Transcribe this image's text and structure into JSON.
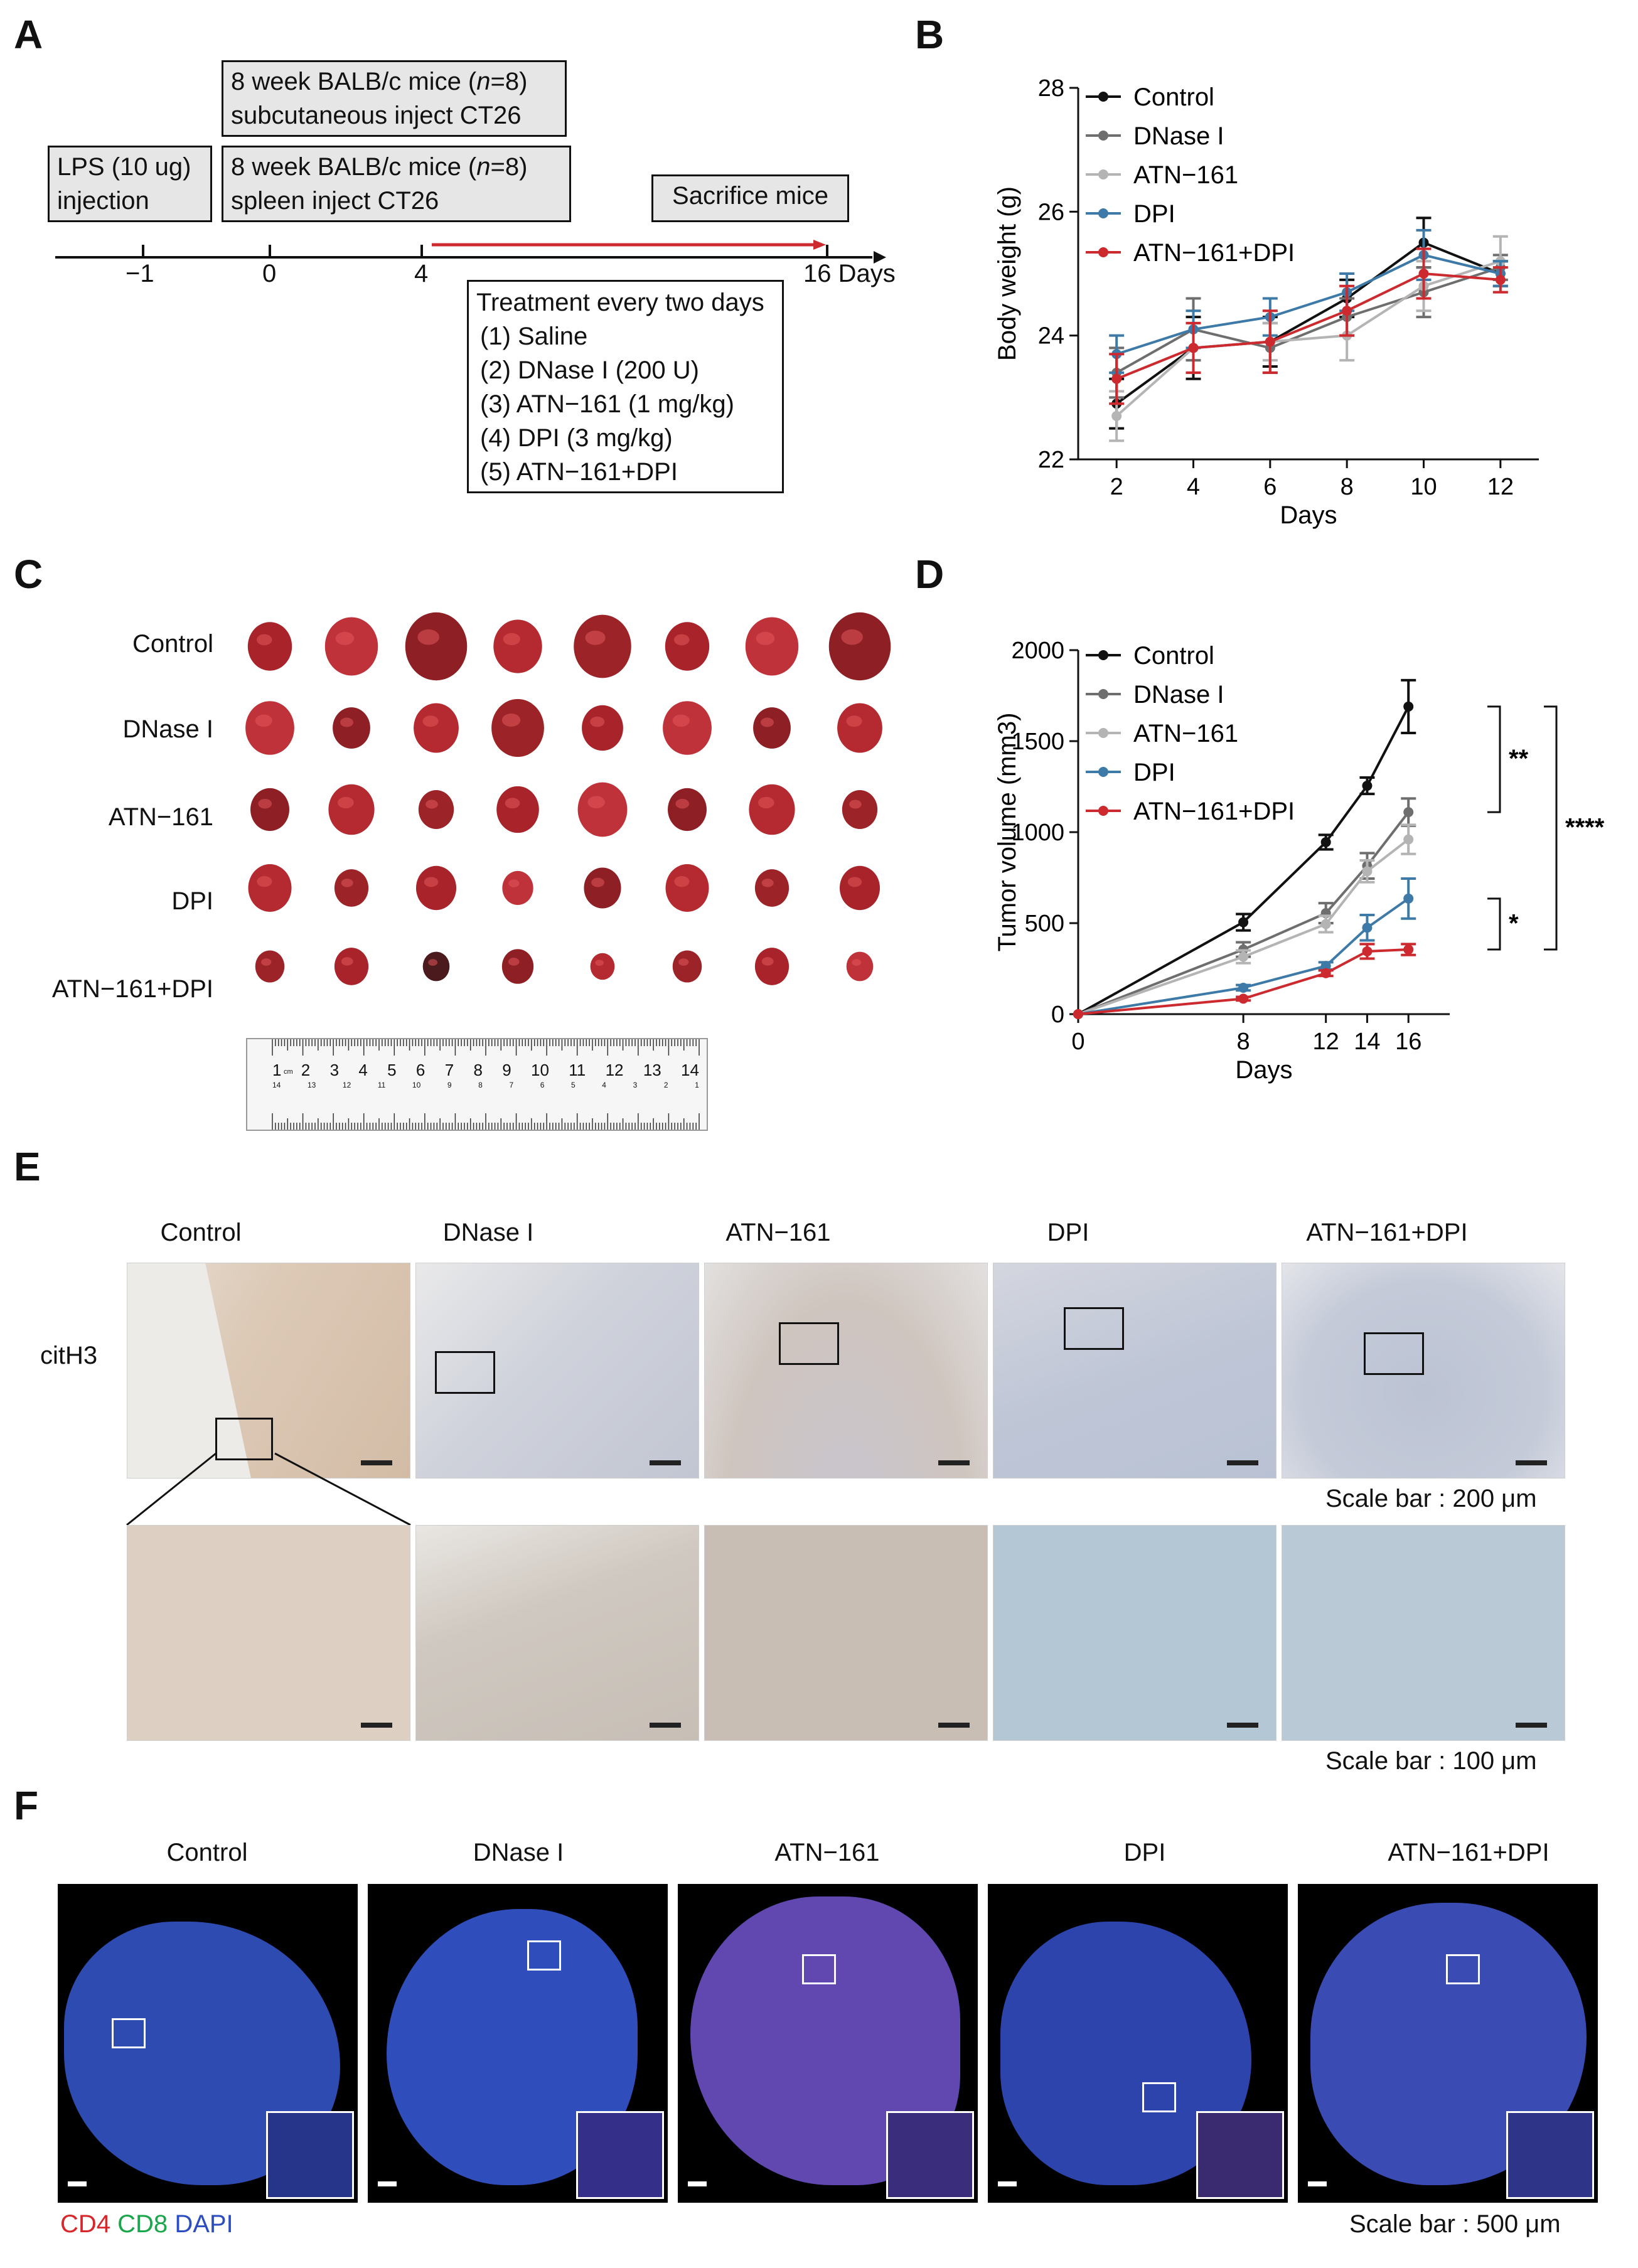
{
  "panels": {
    "a": "A",
    "b": "B",
    "c": "C",
    "d": "D",
    "e": "E",
    "f": "F"
  },
  "panel_a": {
    "box_lps_line1": "LPS (10 ug)",
    "box_lps_line2": "injection",
    "box_subq_line1_pre": "8 week BALB/c mice (",
    "box_subq_n": "n",
    "box_subq_line1_post": "=8)",
    "box_subq_line2": "subcutaneous inject CT26",
    "box_spleen_line1_pre": "8 week BALB/c mice (",
    "box_spleen_n": "n",
    "box_spleen_line1_post": "=8)",
    "box_spleen_line2": "spleen inject CT26",
    "box_sacrifice": "Sacrifice mice",
    "ticks": [
      "−1",
      "0",
      "4",
      "16 Days"
    ],
    "treatment_title": "Treatment every two days",
    "treatments": [
      "(1) Saline",
      "(2) DNase I (200 U)",
      "(3) ATN−161 (1 mg/kg)",
      "(4) DPI (3 mg/kg)",
      "(5) ATN−161+DPI"
    ]
  },
  "colors": {
    "Control": "#111111",
    "DNase I": "#6e6e6e",
    "ATN−161": "#b4b4b4",
    "DPI": "#3d7aa8",
    "ATN−161+DPI": "#cc2a2e"
  },
  "chart_data": [
    {
      "panel": "B",
      "type": "line",
      "xlabel": "Days",
      "ylabel": "Body weight (g)",
      "xlim": [
        1,
        13
      ],
      "ylim": [
        22,
        28
      ],
      "xticks": [
        2,
        4,
        6,
        8,
        10,
        12
      ],
      "yticks": [
        22,
        24,
        26,
        28
      ],
      "legend_position": "top-left",
      "x": [
        2,
        4,
        6,
        8,
        10,
        12
      ],
      "series": [
        {
          "name": "Control",
          "values": [
            22.9,
            23.8,
            23.9,
            24.6,
            25.5,
            25.0
          ],
          "err": [
            0.4,
            0.5,
            0.4,
            0.3,
            0.4,
            0.2
          ]
        },
        {
          "name": "DNase I",
          "values": [
            23.4,
            24.1,
            23.8,
            24.3,
            24.7,
            25.1
          ],
          "err": [
            0.4,
            0.5,
            0.4,
            0.3,
            0.4,
            0.2
          ]
        },
        {
          "name": "ATN−161",
          "values": [
            22.7,
            23.8,
            23.9,
            24.0,
            24.8,
            25.2
          ],
          "err": [
            0.4,
            0.4,
            0.3,
            0.4,
            0.4,
            0.4
          ]
        },
        {
          "name": "DPI",
          "values": [
            23.7,
            24.1,
            24.3,
            24.7,
            25.3,
            25.0
          ],
          "err": [
            0.3,
            0.3,
            0.3,
            0.3,
            0.4,
            0.2
          ]
        },
        {
          "name": "ATN−161+DPI",
          "values": [
            23.3,
            23.8,
            23.9,
            24.4,
            25.0,
            24.9
          ],
          "err": [
            0.4,
            0.4,
            0.5,
            0.4,
            0.4,
            0.2
          ]
        }
      ]
    },
    {
      "panel": "D",
      "type": "line",
      "xlabel": "Days",
      "ylabel": "Tumor volume (mm3)",
      "xlim": [
        0,
        18
      ],
      "ylim": [
        0,
        2000
      ],
      "xticks": [
        0,
        8,
        12,
        14,
        16
      ],
      "yticks": [
        0,
        500,
        1000,
        1500,
        2000
      ],
      "legend_position": "top-left",
      "x": [
        0,
        8,
        12,
        14,
        16
      ],
      "series": [
        {
          "name": "Control",
          "values": [
            0,
            505,
            945,
            1255,
            1690
          ],
          "err": [
            0,
            45,
            40,
            45,
            145
          ]
        },
        {
          "name": "DNase I",
          "values": [
            0,
            355,
            555,
            815,
            1110
          ],
          "err": [
            0,
            40,
            55,
            70,
            75
          ]
        },
        {
          "name": "ATN−161",
          "values": [
            0,
            315,
            495,
            785,
            960
          ],
          "err": [
            0,
            35,
            45,
            60,
            80
          ]
        },
        {
          "name": "DPI",
          "values": [
            0,
            145,
            265,
            475,
            635
          ],
          "err": [
            0,
            15,
            20,
            70,
            110
          ]
        },
        {
          "name": "ATN−161+DPI",
          "values": [
            0,
            85,
            225,
            345,
            355
          ],
          "err": [
            0,
            10,
            15,
            40,
            30
          ]
        }
      ],
      "significance": [
        "**",
        "****",
        "*"
      ]
    }
  ],
  "panel_c": {
    "rows": [
      "Control",
      "DNase I",
      "ATN−161",
      "DPI",
      "ATN−161+DPI"
    ],
    "ruler_numbers": [
      "1",
      "2",
      "3",
      "4",
      "5",
      "6",
      "7",
      "8",
      "9",
      "10",
      "11",
      "12",
      "13",
      "14"
    ],
    "ruler_cm": "cm",
    "ruler_reverse": [
      "14",
      "13",
      "12",
      "11",
      "10",
      "9",
      "8",
      "7",
      "6",
      "5",
      "4",
      "3",
      "2",
      "1"
    ]
  },
  "panel_e": {
    "columns": [
      "Control",
      "DNase I",
      "ATN−161",
      "DPI",
      "ATN−161+DPI"
    ],
    "row_label": "citH3",
    "scale_top": "Scale bar : 200 μm",
    "scale_bottom": "Scale bar : 100 μm"
  },
  "panel_f": {
    "columns": [
      "Control",
      "DNase I",
      "ATN−161",
      "DPI",
      "ATN−161+DPI"
    ],
    "legend_cd4": "CD4",
    "legend_cd8": "CD8",
    "legend_dapi": "DAPI",
    "scale": "Scale bar : 500 μm"
  }
}
